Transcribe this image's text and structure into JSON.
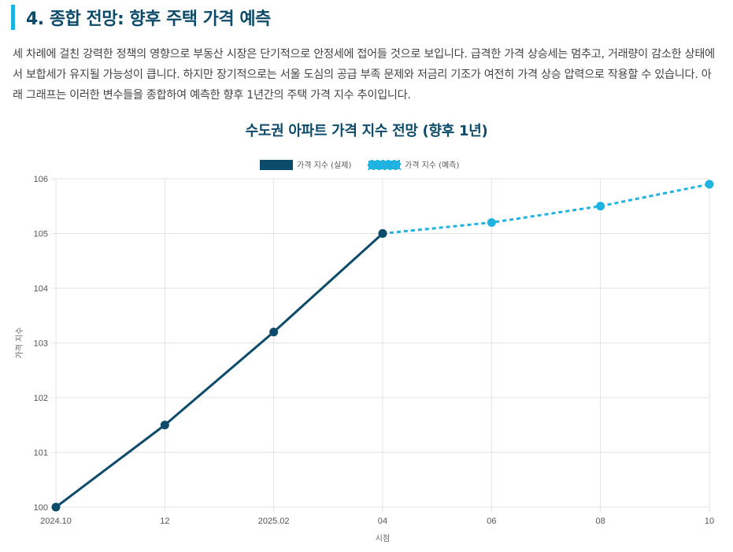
{
  "section": {
    "title": "4. 종합 전망: 향후 주택 가격 예측",
    "intro": "세 차례에 걸친 강력한 정책의 영향으로 부동산 시장은 단기적으로 안정세에 접어들 것으로 보입니다. 급격한 가격 상승세는 멈추고, 거래량이 감소한 상태에서 보합세가 유지될 가능성이 큽니다. 하지만 장기적으로는 서울 도심의 공급 부족 문제와 저금리 기조가 여전히 가격 상승 압력으로 작용할 수 있습니다. 아래 그래프는 이러한 변수들을 종합하여 예측한 향후 1년간의 주택 가격 지수 추이입니다."
  },
  "colors": {
    "accent": "#1fb3e2",
    "heading": "#0d4b6a",
    "actual": "#0d4b6a",
    "forecast": "#1fb3e2"
  },
  "chart_data": {
    "type": "line",
    "title": "수도권 아파트 가격 지수 전망 (향후 1년)",
    "xlabel": "시점",
    "ylabel": "가격 지수",
    "categories": [
      "2024.10",
      "12",
      "2025.02",
      "04",
      "06",
      "08",
      "10"
    ],
    "ylim": [
      100,
      106
    ],
    "yticks": [
      100,
      101,
      102,
      103,
      104,
      105,
      106
    ],
    "grid": true,
    "legend_position": "top-center",
    "series": [
      {
        "name": "가격 지수 (실제)",
        "style": "solid",
        "values": [
          100,
          101.5,
          103.2,
          105,
          null,
          null,
          null
        ]
      },
      {
        "name": "가격 지수 (예측)",
        "style": "dashed",
        "values": [
          null,
          null,
          null,
          105,
          105.2,
          105.5,
          105.9
        ]
      }
    ]
  }
}
